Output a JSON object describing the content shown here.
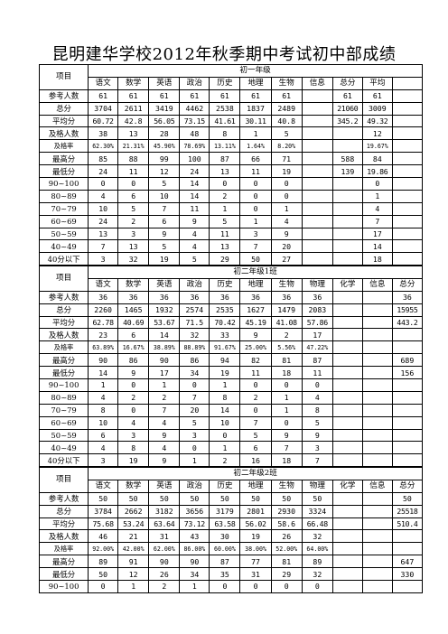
{
  "title": "昆明建华学校2012年秋季期中考试初中部成绩",
  "sections": [
    {
      "header_label": "项目",
      "class_name": "初一年级",
      "subjects": [
        "语文",
        "数学",
        "英语",
        "政治",
        "历史",
        "地理",
        "生物",
        "信息",
        "总分",
        "平均"
      ],
      "rows": [
        {
          "label": "参考人数",
          "cells": [
            "61",
            "61",
            "61",
            "61",
            "61",
            "61",
            "61",
            "",
            "61",
            "61"
          ]
        },
        {
          "label": "总分",
          "cells": [
            "3704",
            "2611",
            "3419",
            "4462",
            "2538",
            "1837",
            "2489",
            "",
            "21060",
            "3009"
          ]
        },
        {
          "label": "平均分",
          "cells": [
            "60.72",
            "42.8",
            "56.05",
            "73.15",
            "41.61",
            "30.11",
            "40.8",
            "",
            "345.2",
            "49.32"
          ]
        },
        {
          "label": "及格人数",
          "cells": [
            "38",
            "13",
            "28",
            "48",
            "8",
            "1",
            "5",
            "",
            "",
            "12"
          ]
        },
        {
          "label": "及格率",
          "cells": [
            "62.30%",
            "21.31%",
            "45.90%",
            "78.69%",
            "13.11%",
            "1.64%",
            "8.20%",
            "",
            "",
            "19.67%"
          ]
        },
        {
          "label": "最高分",
          "cells": [
            "85",
            "88",
            "99",
            "100",
            "87",
            "66",
            "71",
            "",
            "588",
            "84"
          ]
        },
        {
          "label": "最低分",
          "cells": [
            "24",
            "11",
            "12",
            "24",
            "13",
            "11",
            "19",
            "",
            "139",
            "19.86"
          ]
        },
        {
          "label": "90~100",
          "cells": [
            "0",
            "0",
            "5",
            "14",
            "0",
            "0",
            "0",
            "",
            "",
            "0"
          ]
        },
        {
          "label": "80~89",
          "cells": [
            "4",
            "6",
            "10",
            "14",
            "2",
            "0",
            "0",
            "",
            "",
            "1"
          ]
        },
        {
          "label": "70~79",
          "cells": [
            "10",
            "5",
            "7",
            "11",
            "1",
            "0",
            "1",
            "",
            "",
            "4"
          ]
        },
        {
          "label": "60~69",
          "cells": [
            "24",
            "2",
            "6",
            "9",
            "5",
            "1",
            "4",
            "",
            "",
            "7"
          ]
        },
        {
          "label": "50~59",
          "cells": [
            "13",
            "3",
            "9",
            "4",
            "11",
            "3",
            "9",
            "",
            "",
            "17"
          ]
        },
        {
          "label": "40~49",
          "cells": [
            "7",
            "13",
            "5",
            "4",
            "13",
            "7",
            "20",
            "",
            "",
            "14"
          ]
        },
        {
          "label": "40分以下",
          "cells": [
            "3",
            "32",
            "19",
            "5",
            "29",
            "50",
            "27",
            "",
            "",
            "18"
          ]
        }
      ]
    },
    {
      "header_label": "项目",
      "class_name": "初二年级1班",
      "subjects": [
        "语文",
        "数学",
        "英语",
        "政治",
        "历史",
        "地理",
        "生物",
        "物理",
        "化学",
        "信息",
        "总分"
      ],
      "rows": [
        {
          "label": "参考人数",
          "cells": [
            "36",
            "36",
            "36",
            "36",
            "36",
            "36",
            "36",
            "36",
            "",
            "",
            "36"
          ]
        },
        {
          "label": "总分",
          "cells": [
            "2260",
            "1465",
            "1932",
            "2574",
            "2535",
            "1627",
            "1479",
            "2083",
            "",
            "",
            "15955"
          ]
        },
        {
          "label": "平均分",
          "cells": [
            "62.78",
            "40.69",
            "53.67",
            "71.5",
            "70.42",
            "45.19",
            "41.08",
            "57.86",
            "",
            "",
            "443.2"
          ]
        },
        {
          "label": "及格人数",
          "cells": [
            "23",
            "6",
            "14",
            "32",
            "33",
            "9",
            "2",
            "17",
            "",
            "",
            ""
          ]
        },
        {
          "label": "及格率",
          "cells": [
            "63.89%",
            "16.67%",
            "38.89%",
            "88.89%",
            "91.67%",
            "25.00%",
            "5.56%",
            "47.22%",
            "",
            "",
            ""
          ]
        },
        {
          "label": "最高分",
          "cells": [
            "90",
            "86",
            "90",
            "86",
            "94",
            "82",
            "81",
            "87",
            "",
            "",
            "689"
          ]
        },
        {
          "label": "最低分",
          "cells": [
            "14",
            "9",
            "17",
            "34",
            "19",
            "11",
            "18",
            "11",
            "",
            "",
            "156"
          ]
        },
        {
          "label": "90~100",
          "cells": [
            "1",
            "0",
            "1",
            "0",
            "1",
            "0",
            "0",
            "0",
            "",
            "",
            ""
          ]
        },
        {
          "label": "80~89",
          "cells": [
            "4",
            "2",
            "2",
            "7",
            "8",
            "2",
            "1",
            "4",
            "",
            "",
            ""
          ]
        },
        {
          "label": "70~79",
          "cells": [
            "8",
            "0",
            "7",
            "20",
            "14",
            "0",
            "1",
            "8",
            "",
            "",
            ""
          ]
        },
        {
          "label": "60~69",
          "cells": [
            "10",
            "4",
            "4",
            "5",
            "10",
            "7",
            "0",
            "5",
            "",
            "",
            ""
          ]
        },
        {
          "label": "50~59",
          "cells": [
            "6",
            "3",
            "9",
            "3",
            "0",
            "5",
            "9",
            "9",
            "",
            "",
            ""
          ]
        },
        {
          "label": "40~49",
          "cells": [
            "4",
            "8",
            "4",
            "0",
            "1",
            "6",
            "7",
            "3",
            "",
            "",
            ""
          ]
        },
        {
          "label": "40分以下",
          "cells": [
            "3",
            "19",
            "9",
            "1",
            "2",
            "16",
            "18",
            "7",
            "",
            "",
            ""
          ]
        }
      ]
    },
    {
      "header_label": "项目",
      "class_name": "初二年级2班",
      "subjects": [
        "语文",
        "数学",
        "英语",
        "政治",
        "历史",
        "地理",
        "生物",
        "物理",
        "化学",
        "信息",
        "总分"
      ],
      "rows": [
        {
          "label": "参考人数",
          "cells": [
            "50",
            "50",
            "50",
            "50",
            "50",
            "50",
            "50",
            "50",
            "",
            "",
            "50"
          ]
        },
        {
          "label": "总分",
          "cells": [
            "3784",
            "2662",
            "3182",
            "3656",
            "3179",
            "2801",
            "2930",
            "3324",
            "",
            "",
            "25518"
          ]
        },
        {
          "label": "平均分",
          "cells": [
            "75.68",
            "53.24",
            "63.64",
            "73.12",
            "63.58",
            "56.02",
            "58.6",
            "66.48",
            "",
            "",
            "510.4"
          ]
        },
        {
          "label": "及格人数",
          "cells": [
            "46",
            "21",
            "31",
            "43",
            "30",
            "19",
            "26",
            "32",
            "",
            "",
            ""
          ]
        },
        {
          "label": "及格率",
          "cells": [
            "92.00%",
            "42.00%",
            "62.00%",
            "86.00%",
            "60.00%",
            "38.00%",
            "52.00%",
            "64.00%",
            "",
            "",
            ""
          ]
        },
        {
          "label": "最高分",
          "cells": [
            "89",
            "91",
            "90",
            "90",
            "87",
            "77",
            "81",
            "89",
            "",
            "",
            "647"
          ]
        },
        {
          "label": "最低分",
          "cells": [
            "50",
            "12",
            "26",
            "34",
            "35",
            "31",
            "29",
            "32",
            "",
            "",
            "330"
          ]
        },
        {
          "label": "90~100",
          "cells": [
            "0",
            "1",
            "2",
            "1",
            "0",
            "0",
            "0",
            "0",
            "",
            "",
            ""
          ]
        }
      ]
    }
  ]
}
